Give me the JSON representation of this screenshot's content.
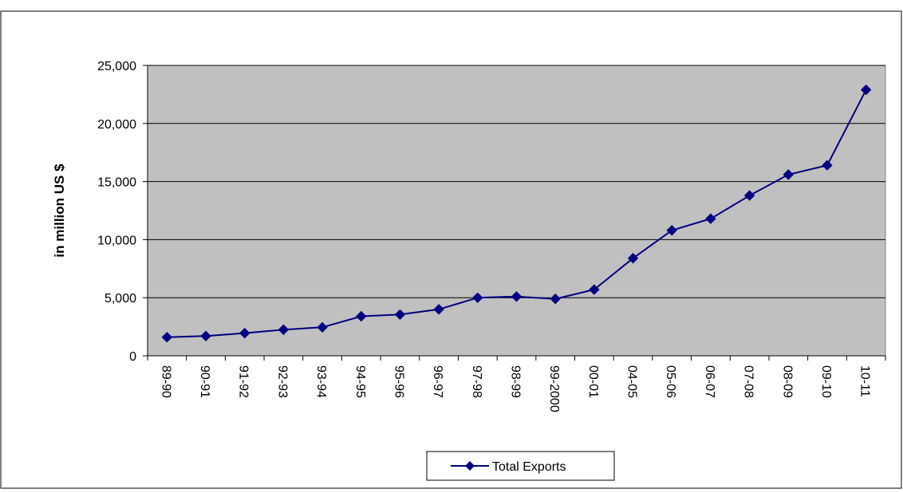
{
  "chart_data": {
    "type": "line",
    "title": "",
    "xlabel": "",
    "ylabel": "in million US $",
    "ylim": [
      0,
      25000
    ],
    "yticks": [
      0,
      5000,
      10000,
      15000,
      20000,
      25000
    ],
    "ytick_labels": [
      "0",
      "5,000",
      "10,000",
      "15,000",
      "20,000",
      "25,000"
    ],
    "grid": true,
    "legend_position": "bottom",
    "categories": [
      "89-90",
      "90-91",
      "91-92",
      "92-93",
      "93-94",
      "94-95",
      "95-96",
      "96-97",
      "97-98",
      "98-99",
      "99-2000",
      "00-01",
      "04-05",
      "05-06",
      "06-07",
      "07-08",
      "08-09",
      "09-10",
      "10-11"
    ],
    "series": [
      {
        "name": "Total Exports",
        "color": "#000080",
        "marker": "diamond",
        "values": [
          1600,
          1700,
          1950,
          2250,
          2450,
          3400,
          3550,
          4000,
          5000,
          5100,
          4900,
          5700,
          8400,
          10800,
          11800,
          13800,
          15600,
          16400,
          22900
        ]
      }
    ],
    "plot_background": "#c0c0c0"
  }
}
